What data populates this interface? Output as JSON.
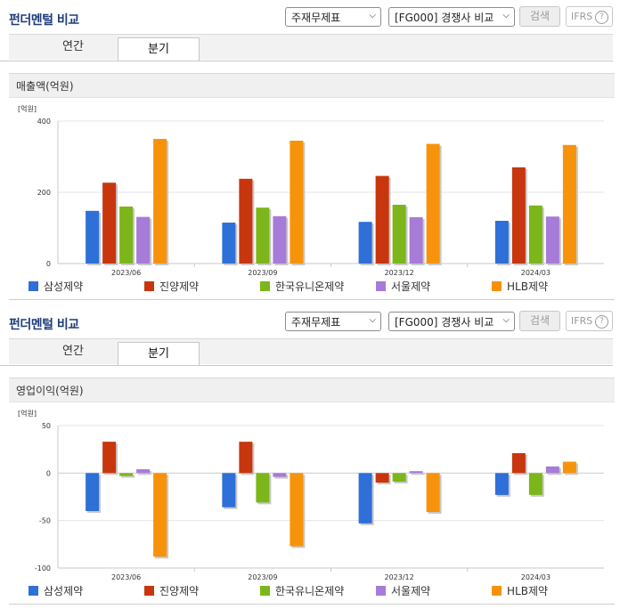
{
  "colors": {
    "samsung": "#2e6fd8",
    "jinyang": "#c8360e",
    "hankook": "#7cb61a",
    "seoul": "#a77bd8",
    "hlb": "#f7930a",
    "title": "#1f3d7a"
  },
  "panels": [
    {
      "title": "펀더멘털 비교",
      "statement_select": "주재무제표",
      "compare_select": "[FG000] 경쟁사 비교",
      "search_button": "검색",
      "ifrs_label": "IFRS",
      "help_icon": "?",
      "tabs": [
        "연간",
        "분기"
      ],
      "active_tab": "분기",
      "metric_label": "매출액(억원)",
      "unit": "[억원]",
      "legend": [
        "삼성제약",
        "진양제약",
        "한국유니온제약",
        "서울제약",
        "HLB제약"
      ],
      "chart_data": {
        "type": "bar",
        "categories": [
          "2023/06",
          "2023/09",
          "2023/12",
          "2024/03"
        ],
        "ylim": [
          0,
          400
        ],
        "yticks": [
          "0",
          "200",
          "400"
        ],
        "series": [
          {
            "name": "삼성제약",
            "values": [
              148,
              115,
              117,
              120
            ]
          },
          {
            "name": "진양제약",
            "values": [
              227,
              238,
              246,
              270
            ]
          },
          {
            "name": "한국유니온제약",
            "values": [
              160,
              157,
              165,
              163
            ]
          },
          {
            "name": "서울제약",
            "values": [
              131,
              133,
              130,
              132
            ]
          },
          {
            "name": "HLB제약",
            "values": [
              350,
              345,
              336,
              333
            ]
          }
        ]
      }
    },
    {
      "title": "펀더멘털 비교",
      "statement_select": "주재무제표",
      "compare_select": "[FG000] 경쟁사 비교",
      "search_button": "검색",
      "ifrs_label": "IFRS",
      "help_icon": "?",
      "tabs": [
        "연간",
        "분기"
      ],
      "active_tab": "분기",
      "metric_label": "영업이익(억원)",
      "unit": "[억원]",
      "legend": [
        "삼성제약",
        "진양제약",
        "한국유니온제약",
        "서울제약",
        "HLB제약"
      ],
      "chart_data": {
        "type": "bar",
        "categories": [
          "2023/06",
          "2023/09",
          "2023/12",
          "2024/03"
        ],
        "ylim": [
          -100,
          50
        ],
        "yticks": [
          "50",
          "0",
          "-50",
          "-100"
        ],
        "series": [
          {
            "name": "삼성제약",
            "values": [
              -40,
              -36,
              -53,
              -23
            ]
          },
          {
            "name": "진양제약",
            "values": [
              33,
              33,
              -10,
              21
            ]
          },
          {
            "name": "한국유니온제약",
            "values": [
              -3,
              -31,
              -9,
              -23
            ]
          },
          {
            "name": "서울제약",
            "values": [
              4,
              -4,
              2,
              7
            ]
          },
          {
            "name": "HLB제약",
            "values": [
              -88,
              -77,
              -41,
              12
            ]
          }
        ]
      }
    }
  ]
}
